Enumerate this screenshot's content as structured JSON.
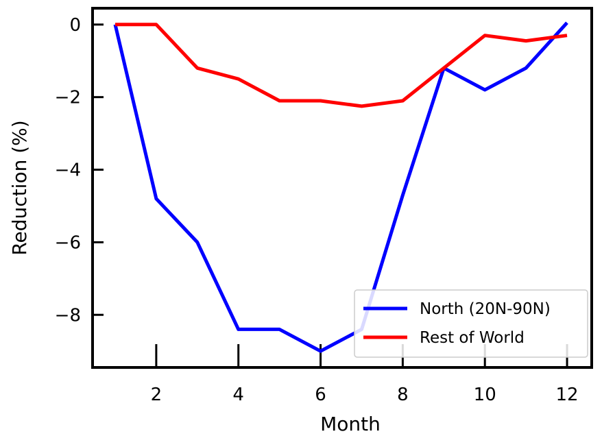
{
  "chart_data": {
    "type": "line",
    "xlabel": "Month",
    "ylabel": "Reduction (%)",
    "xlim": [
      0.45,
      12.6
    ],
    "ylim": [
      -9.45,
      0.45
    ],
    "x_ticks": [
      2,
      4,
      6,
      8,
      10,
      12
    ],
    "y_ticks": [
      0,
      -2,
      -4,
      -6,
      -8
    ],
    "x_tick_labels": [
      "2",
      "4",
      "6",
      "8",
      "10",
      "12"
    ],
    "y_tick_labels": [
      "0",
      "−2",
      "−4",
      "−6",
      "−8"
    ],
    "grid": false,
    "legend_position": "lower-right",
    "series": [
      {
        "name": "North (20N-90N)",
        "color": "#0000ff",
        "x": [
          1,
          2,
          3,
          4,
          5,
          6,
          7,
          8,
          9,
          10,
          11,
          12
        ],
        "values": [
          0,
          -4.8,
          -6.0,
          -8.4,
          -8.4,
          -9.0,
          -8.4,
          -4.7,
          -1.2,
          -1.8,
          -1.2,
          0.05
        ]
      },
      {
        "name": "Rest of World",
        "color": "#ff0000",
        "x": [
          1,
          2,
          3,
          4,
          5,
          6,
          7,
          8,
          9,
          10,
          11,
          12
        ],
        "values": [
          0,
          0,
          -1.2,
          -1.5,
          -2.1,
          -2.1,
          -2.25,
          -2.1,
          -1.2,
          -0.3,
          -0.45,
          -0.3
        ]
      }
    ]
  }
}
